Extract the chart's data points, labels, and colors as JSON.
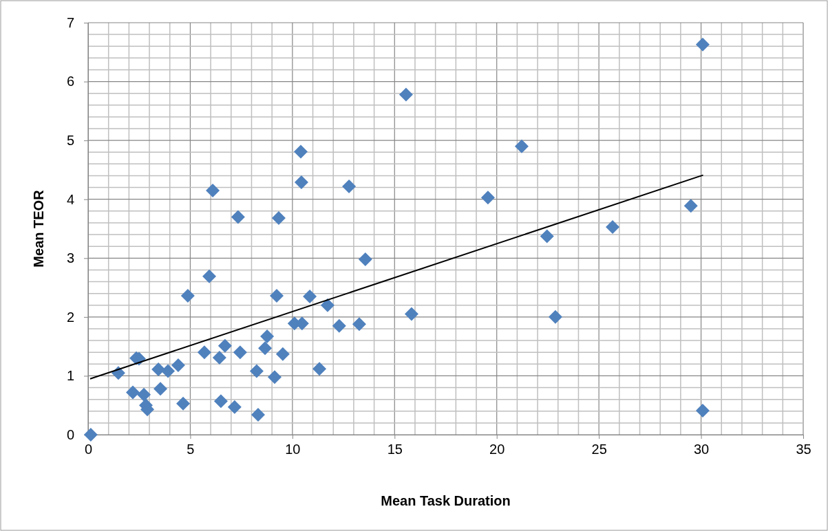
{
  "chart_data": {
    "type": "scatter",
    "xlabel": "Mean Task Duration",
    "ylabel": "Mean TEOR",
    "xlim": [
      0,
      35
    ],
    "ylim": [
      0,
      7
    ],
    "xticks": [
      0,
      {
        "value": 1,
        "label": null
      },
      {
        "value": 2,
        "label": null
      },
      {
        "value": 3,
        "label": null
      },
      {
        "value": 4,
        "label": null
      },
      5,
      {
        "value": 6,
        "label": null
      },
      {
        "value": 7,
        "label": null
      },
      {
        "value": 8,
        "label": null
      },
      {
        "value": 9,
        "label": null
      },
      10,
      {
        "value": 11,
        "label": null
      },
      {
        "value": 12,
        "label": null
      },
      {
        "value": 13,
        "label": null
      },
      {
        "value": 14,
        "label": null
      },
      15,
      {
        "value": 16,
        "label": null
      },
      {
        "value": 17,
        "label": null
      },
      {
        "value": 18,
        "label": null
      },
      {
        "value": 19,
        "label": null
      },
      20,
      {
        "value": 21,
        "label": null
      },
      {
        "value": 22,
        "label": null
      },
      {
        "value": 23,
        "label": null
      },
      {
        "value": 24,
        "label": null
      },
      25,
      {
        "value": 26,
        "label": null
      },
      {
        "value": 27,
        "label": null
      },
      {
        "value": 28,
        "label": null
      },
      {
        "value": 29,
        "label": null
      },
      30,
      {
        "value": 31,
        "label": null
      },
      {
        "value": 32,
        "label": null
      },
      {
        "value": 33,
        "label": null
      },
      {
        "value": 34,
        "label": null
      },
      35
    ],
    "yticks": [
      0,
      {
        "value": 0.2,
        "label": null
      },
      {
        "value": 0.4,
        "label": null
      },
      {
        "value": 0.6,
        "label": null
      },
      {
        "value": 0.8,
        "label": null
      },
      1,
      {
        "value": 1.2,
        "label": null
      },
      {
        "value": 1.4,
        "label": null
      },
      {
        "value": 1.6,
        "label": null
      },
      {
        "value": 1.8,
        "label": null
      },
      2,
      {
        "value": 2.2,
        "label": null
      },
      {
        "value": 2.4,
        "label": null
      },
      {
        "value": 2.6,
        "label": null
      },
      {
        "value": 2.8,
        "label": null
      },
      3,
      {
        "value": 3.2,
        "label": null
      },
      {
        "value": 3.4,
        "label": null
      },
      {
        "value": 3.6,
        "label": null
      },
      {
        "value": 3.8,
        "label": null
      },
      4,
      {
        "value": 4.2,
        "label": null
      },
      {
        "value": 4.4,
        "label": null
      },
      {
        "value": 4.6,
        "label": null
      },
      {
        "value": 4.8,
        "label": null
      },
      5,
      {
        "value": 5.2,
        "label": null
      },
      {
        "value": 5.4,
        "label": null
      },
      {
        "value": 5.6,
        "label": null
      },
      {
        "value": 5.8,
        "label": null
      },
      6,
      {
        "value": 6.2,
        "label": null
      },
      {
        "value": 6.4,
        "label": null
      },
      {
        "value": 6.6,
        "label": null
      },
      {
        "value": 6.8,
        "label": null
      },
      7
    ],
    "grid": true,
    "series": [
      {
        "color": "#4f81bd",
        "marker": "diamond",
        "x": [
          0.13,
          1.48,
          2.19,
          2.36,
          2.49,
          2.73,
          2.83,
          2.9,
          3.44,
          3.54,
          3.91,
          4.41,
          4.65,
          4.88,
          5.69,
          5.93,
          6.1,
          6.43,
          6.5,
          6.7,
          7.17,
          7.34,
          7.44,
          8.25,
          8.32,
          8.66,
          8.76,
          9.13,
          9.23,
          9.33,
          9.53,
          10.1,
          10.41,
          10.44,
          10.47,
          10.85,
          11.32,
          11.72,
          12.29,
          12.77,
          13.27,
          13.57,
          15.56,
          15.83,
          19.57,
          21.22,
          22.46,
          22.87,
          25.67,
          29.5,
          30.08,
          30.08
        ],
        "values": [
          0,
          1.05,
          0.72,
          1.3,
          1.29,
          0.68,
          0.5,
          0.43,
          1.11,
          0.78,
          1.08,
          1.18,
          0.53,
          2.36,
          1.4,
          2.69,
          4.15,
          1.31,
          0.57,
          1.51,
          0.47,
          3.7,
          1.4,
          1.08,
          0.34,
          1.47,
          1.67,
          0.98,
          2.36,
          3.68,
          1.37,
          1.89,
          4.81,
          4.29,
          1.89,
          2.35,
          1.12,
          2.2,
          1.85,
          4.22,
          1.88,
          2.98,
          5.78,
          2.05,
          4.03,
          4.9,
          3.37,
          2.0,
          3.53,
          3.89,
          6.63,
          0.41
        ]
      },
      {
        "type": "line",
        "color": "#000000",
        "line_style": "solid",
        "marker": "none",
        "x": [
          0.1,
          30.1
        ],
        "values": [
          0.95,
          4.41
        ]
      }
    ]
  }
}
